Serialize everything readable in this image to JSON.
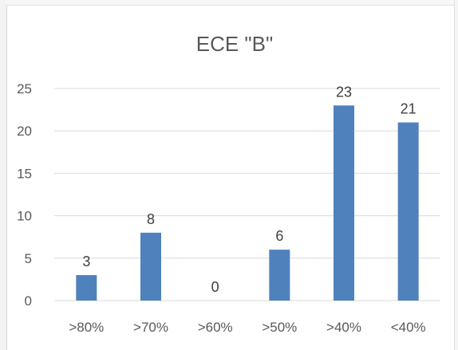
{
  "chart_data": {
    "type": "bar",
    "title": "ECE \"B\"",
    "categories": [
      ">80%",
      ">70%",
      ">60%",
      ">50%",
      ">40%",
      "<40%"
    ],
    "values": [
      3,
      8,
      0,
      6,
      23,
      21
    ],
    "data_labels": [
      "3",
      "8",
      "0",
      "6",
      "23",
      "21"
    ],
    "ylim": [
      0,
      25
    ],
    "yticks": [
      0,
      5,
      10,
      15,
      20,
      25
    ],
    "grid": true,
    "legend": "none",
    "bar_color": "#4f81bd",
    "grid_color": "#d9d9d9"
  }
}
